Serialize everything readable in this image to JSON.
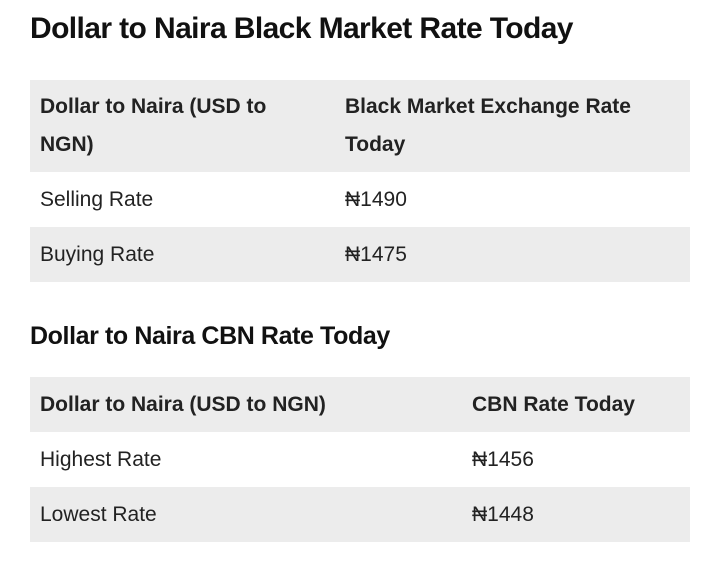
{
  "title": "Dollar to Naira Black Market Rate Today",
  "table1": {
    "header": [
      "Dollar to Naira (USD to NGN)",
      "Black Market Exchange Rate Today"
    ],
    "rows": [
      [
        "Selling Rate",
        "₦1490"
      ],
      [
        "Buying Rate",
        "₦1475"
      ]
    ]
  },
  "subtitle": "Dollar to Naira CBN Rate Today",
  "table2": {
    "header": [
      "Dollar to Naira (USD to NGN)",
      "CBN Rate Today"
    ],
    "rows": [
      [
        "Highest Rate",
        "₦1456"
      ],
      [
        "Lowest Rate",
        "₦1448"
      ]
    ]
  }
}
